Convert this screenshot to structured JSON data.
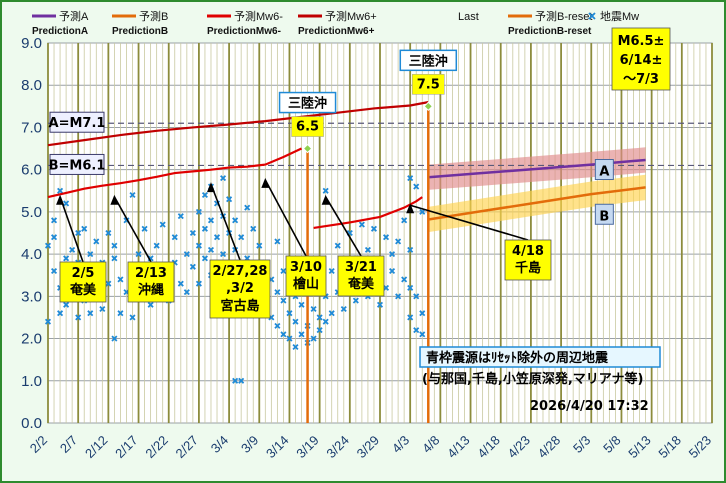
{
  "chart_data": {
    "type": "line",
    "ylim": [
      0.0,
      9.0
    ],
    "yticks": [
      "0.0",
      "1.0",
      "2.0",
      "3.0",
      "4.0",
      "5.0",
      "6.0",
      "7.0",
      "8.0",
      "9.0"
    ],
    "xticks": [
      "2/2",
      "2/7",
      "2/12",
      "2/17",
      "2/22",
      "2/27",
      "3/4",
      "3/9",
      "3/14",
      "3/19",
      "3/24",
      "3/29",
      "4/3",
      "4/8",
      "4/13",
      "4/18",
      "4/23",
      "4/28",
      "5/3",
      "5/8",
      "5/13",
      "5/18",
      "5/23"
    ],
    "grid": true,
    "legend_position": "top",
    "legend": [
      {
        "label": "予測A",
        "sub": "PredictionA",
        "color": "#7030a0"
      },
      {
        "label": "予測B",
        "sub": "PredictionB",
        "color": "#e36c0a"
      },
      {
        "label": "予測Mw6-",
        "sub": "PredictionMw6-",
        "color": "#e00000"
      },
      {
        "label": "予測Mw6+",
        "sub": "PredictionMw6+",
        "color": "#c00000"
      },
      {
        "label": "Last",
        "sub": "",
        "color": "#c00000"
      },
      {
        "label": "予測B-reset",
        "sub": "PredictionB-reset",
        "color": "#e36c0a"
      },
      {
        "label": "地震Mw",
        "sub": "",
        "color": "#1f8ad6"
      }
    ],
    "series": [
      {
        "name": "予測Mw6-",
        "color": "#e00000",
        "points": [
          [
            0,
            5.35
          ],
          [
            3,
            5.45
          ],
          [
            6,
            5.55
          ],
          [
            9,
            5.62
          ],
          [
            12,
            5.68
          ],
          [
            15,
            5.75
          ],
          [
            18,
            5.83
          ],
          [
            21,
            5.92
          ],
          [
            24,
            5.96
          ],
          [
            27,
            6.0
          ],
          [
            30,
            6.05
          ],
          [
            33,
            6.07
          ],
          [
            36,
            6.12
          ],
          [
            39,
            6.3
          ],
          [
            42,
            6.5
          ]
        ]
      },
      {
        "name": "予測Mw6+",
        "color": "#c00000",
        "points": [
          [
            0,
            6.58
          ],
          [
            6,
            6.7
          ],
          [
            12,
            6.82
          ],
          [
            18,
            6.92
          ],
          [
            24,
            7.0
          ],
          [
            30,
            7.07
          ],
          [
            36,
            7.15
          ],
          [
            42,
            7.25
          ],
          [
            48,
            7.35
          ],
          [
            54,
            7.45
          ],
          [
            60,
            7.52
          ],
          [
            63,
            7.6
          ]
        ]
      },
      {
        "name": "Last",
        "color": "#e00000",
        "points": [
          [
            44,
            4.62
          ],
          [
            50,
            4.75
          ],
          [
            55,
            4.88
          ],
          [
            59,
            5.1
          ],
          [
            61,
            5.25
          ],
          [
            62,
            5.35
          ]
        ]
      },
      {
        "name": "予測A",
        "color": "#7030a0",
        "band": "#e08a8a",
        "points": [
          [
            63,
            5.82
          ],
          [
            72,
            5.92
          ],
          [
            81,
            6.02
          ],
          [
            90,
            6.12
          ],
          [
            99,
            6.23
          ]
        ]
      },
      {
        "name": "予測B",
        "color": "#e36c0a",
        "band": "#ffd24d",
        "points": [
          [
            63,
            4.82
          ],
          [
            72,
            5.02
          ],
          [
            81,
            5.22
          ],
          [
            90,
            5.42
          ],
          [
            99,
            5.58
          ]
        ]
      }
    ],
    "reset_lines": [
      {
        "x": 43,
        "label": "三陸沖",
        "value": "6.5",
        "value_y": 6.5
      },
      {
        "x": 63,
        "label": "三陸沖",
        "value": "7.5",
        "value_y": 7.5
      }
    ],
    "reference_lines": [
      {
        "label": "A=M7.1",
        "y": 7.1
      },
      {
        "label": "B=M6.1",
        "y": 6.1
      }
    ],
    "scatter_name": "地震Mw",
    "scatter_color": "#1f8ad6",
    "scatter": [
      [
        0,
        2.4
      ],
      [
        0,
        4.2
      ],
      [
        1,
        3.6
      ],
      [
        1,
        4.8
      ],
      [
        1,
        4.4
      ],
      [
        2,
        5.5
      ],
      [
        2,
        3.2
      ],
      [
        2,
        2.6
      ],
      [
        3,
        5.2
      ],
      [
        3,
        3.9
      ],
      [
        3,
        2.8
      ],
      [
        4,
        3.4
      ],
      [
        4,
        4.1
      ],
      [
        4,
        3.0
      ],
      [
        5,
        2.5
      ],
      [
        5,
        4.5
      ],
      [
        5,
        3.8
      ],
      [
        6,
        3.2
      ],
      [
        6,
        4.6
      ],
      [
        6,
        2.9
      ],
      [
        7,
        3.7
      ],
      [
        7,
        4.0
      ],
      [
        7,
        2.6
      ],
      [
        8,
        3.5
      ],
      [
        8,
        4.3
      ],
      [
        9,
        2.7
      ],
      [
        9,
        3.8
      ],
      [
        9,
        3.1
      ],
      [
        10,
        4.5
      ],
      [
        10,
        3.3
      ],
      [
        11,
        2.0
      ],
      [
        11,
        3.9
      ],
      [
        11,
        4.2
      ],
      [
        12,
        3.4
      ],
      [
        12,
        2.6
      ],
      [
        13,
        4.8
      ],
      [
        13,
        3.1
      ],
      [
        14,
        5.4
      ],
      [
        14,
        3.7
      ],
      [
        14,
        2.5
      ],
      [
        15,
        4.0
      ],
      [
        15,
        3.2
      ],
      [
        16,
        4.6
      ],
      [
        16,
        3.5
      ],
      [
        17,
        3.9
      ],
      [
        17,
        2.8
      ],
      [
        18,
        4.2
      ],
      [
        18,
        3.4
      ],
      [
        19,
        3.0
      ],
      [
        19,
        4.7
      ],
      [
        20,
        3.6
      ],
      [
        20,
        2.9
      ],
      [
        21,
        4.4
      ],
      [
        21,
        3.8
      ],
      [
        22,
        3.3
      ],
      [
        22,
        4.9
      ],
      [
        23,
        3.1
      ],
      [
        23,
        4.0
      ],
      [
        24,
        4.5
      ],
      [
        24,
        3.7
      ],
      [
        25,
        5.0
      ],
      [
        25,
        4.2
      ],
      [
        25,
        3.3
      ],
      [
        26,
        5.4
      ],
      [
        26,
        4.6
      ],
      [
        26,
        3.9
      ],
      [
        27,
        5.6
      ],
      [
        27,
        4.8
      ],
      [
        27,
        4.1
      ],
      [
        27,
        3.5
      ],
      [
        28,
        5.2
      ],
      [
        28,
        4.4
      ],
      [
        28,
        3.6
      ],
      [
        29,
        5.8
      ],
      [
        29,
        4.9
      ],
      [
        29,
        4.0
      ],
      [
        29,
        3.2
      ],
      [
        30,
        5.3
      ],
      [
        30,
        4.5
      ],
      [
        30,
        3.7
      ],
      [
        31,
        4.8
      ],
      [
        31,
        4.1
      ],
      [
        31,
        3.0
      ],
      [
        31,
        1.0
      ],
      [
        32,
        4.4
      ],
      [
        32,
        3.6
      ],
      [
        32,
        2.7
      ],
      [
        32,
        1.0
      ],
      [
        33,
        5.1
      ],
      [
        33,
        3.9
      ],
      [
        33,
        3.3
      ],
      [
        34,
        4.6
      ],
      [
        34,
        3.5
      ],
      [
        35,
        4.2
      ],
      [
        35,
        3.1
      ],
      [
        36,
        3.8
      ],
      [
        36,
        2.8
      ],
      [
        37,
        3.4
      ],
      [
        37,
        2.5
      ],
      [
        38,
        3.1
      ],
      [
        38,
        2.3
      ],
      [
        38,
        4.3
      ],
      [
        39,
        2.9
      ],
      [
        39,
        2.1
      ],
      [
        39,
        3.6
      ],
      [
        40,
        2.6
      ],
      [
        40,
        2.0
      ],
      [
        40,
        3.3
      ],
      [
        41,
        2.4
      ],
      [
        41,
        1.8
      ],
      [
        41,
        3.0
      ],
      [
        42,
        2.8
      ],
      [
        42,
        2.1
      ],
      [
        42,
        3.5
      ],
      [
        43,
        2.3
      ],
      [
        43,
        1.9
      ],
      [
        43,
        3.1
      ],
      [
        44,
        2.7
      ],
      [
        44,
        2.0
      ],
      [
        44,
        3.4
      ],
      [
        45,
        2.5
      ],
      [
        45,
        3.8
      ],
      [
        45,
        2.2
      ],
      [
        46,
        5.5
      ],
      [
        46,
        3.0
      ],
      [
        46,
        2.4
      ],
      [
        47,
        3.6
      ],
      [
        47,
        2.6
      ],
      [
        48,
        4.2
      ],
      [
        48,
        3.1
      ],
      [
        49,
        3.8
      ],
      [
        49,
        2.7
      ],
      [
        50,
        4.5
      ],
      [
        50,
        3.4
      ],
      [
        51,
        3.9
      ],
      [
        51,
        2.9
      ],
      [
        52,
        4.7
      ],
      [
        52,
        3.3
      ],
      [
        53,
        4.1
      ],
      [
        53,
        3.0
      ],
      [
        54,
        4.6
      ],
      [
        54,
        3.5
      ],
      [
        55,
        3.8
      ],
      [
        55,
        2.8
      ],
      [
        56,
        4.4
      ],
      [
        56,
        3.2
      ],
      [
        57,
        4.0
      ],
      [
        57,
        3.6
      ],
      [
        58,
        4.3
      ],
      [
        58,
        3.0
      ],
      [
        59,
        4.8
      ],
      [
        59,
        3.4
      ],
      [
        60,
        5.8
      ],
      [
        60,
        4.1
      ],
      [
        60,
        3.2
      ],
      [
        60,
        2.5
      ],
      [
        61,
        5.6
      ],
      [
        61,
        3.0
      ],
      [
        61,
        2.2
      ],
      [
        62,
        5.0
      ],
      [
        62,
        2.6
      ],
      [
        62,
        2.1
      ]
    ],
    "callouts": [
      {
        "line1": "2/5",
        "line2": "奄美",
        "ax": 2,
        "ay": 5.5
      },
      {
        "line1": "2/13",
        "line2": "沖縄",
        "ax": 11,
        "ay": 5.5
      },
      {
        "line1": "2/27,28",
        "line2": ",3/2",
        "line3": "宮古島",
        "ax": 27,
        "ay": 5.8
      },
      {
        "line1": "3/10",
        "line2": "檜山",
        "ax": 36,
        "ay": 5.9
      },
      {
        "line1": "3/21",
        "line2": "奄美",
        "ax": 46,
        "ay": 5.5
      },
      {
        "line1": "4/18",
        "line2": "千島",
        "ax": 60,
        "ay": 5.3
      }
    ],
    "forecast_box": [
      "M6.5±",
      "6/14±",
      "～7/3"
    ],
    "band_labels": {
      "a": "A",
      "b": "B"
    },
    "note_title": "青枠震源はﾘｾｯﾄ除外の周辺地震",
    "note_sub": "(与那国,千島,小笠原深発,マリアナ等)",
    "timestamp": "2026/4/20 17:32"
  }
}
